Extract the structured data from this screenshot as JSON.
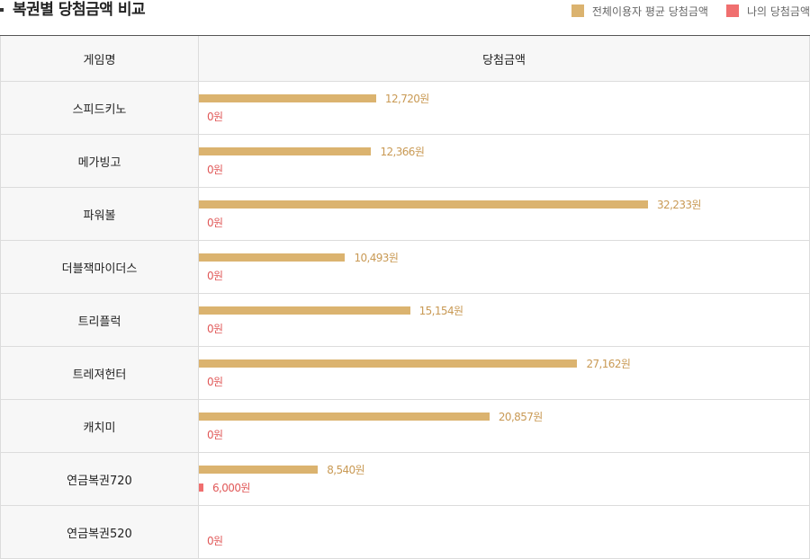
{
  "header": {
    "title": "복권별 당첨금액 비교",
    "legend": [
      {
        "label": "전체이용자 평균 당첨금액",
        "color": "#dbb36f"
      },
      {
        "label": "나의 당첨금액",
        "color": "#f06f6f"
      }
    ]
  },
  "table": {
    "col_name_header": "게임명",
    "col_chart_header": "당첨금액"
  },
  "colors": {
    "avg": "#dbb36f",
    "mine": "#f06f6f",
    "avg_label": "#c99a55",
    "mine_label": "#e15a5a"
  },
  "chart_data": {
    "type": "bar",
    "orientation": "horizontal",
    "categories": [
      "스피드키노",
      "메가빙고",
      "파워볼",
      "더블잭마이더스",
      "트리플럭",
      "트레져헌터",
      "캐치미",
      "연금복권720",
      "연금복권520"
    ],
    "series": [
      {
        "name": "전체이용자 평균 당첨금액",
        "values": [
          12720,
          12366,
          32233,
          10493,
          15154,
          27162,
          20857,
          8540,
          null
        ],
        "labels": [
          "12,720원",
          "12,366원",
          "32,233원",
          "10,493원",
          "15,154원",
          "27,162원",
          "20,857원",
          "8,540원",
          ""
        ]
      },
      {
        "name": "나의 당첨금액",
        "values": [
          0,
          0,
          0,
          0,
          0,
          0,
          0,
          6000,
          0
        ],
        "labels": [
          "0원",
          "0원",
          "0원",
          "0원",
          "0원",
          "0원",
          "0원",
          "6,000원",
          "0원"
        ]
      }
    ],
    "xlabel": "당첨금액",
    "ylabel": "게임명",
    "title": "복권별 당첨금액 비교"
  }
}
